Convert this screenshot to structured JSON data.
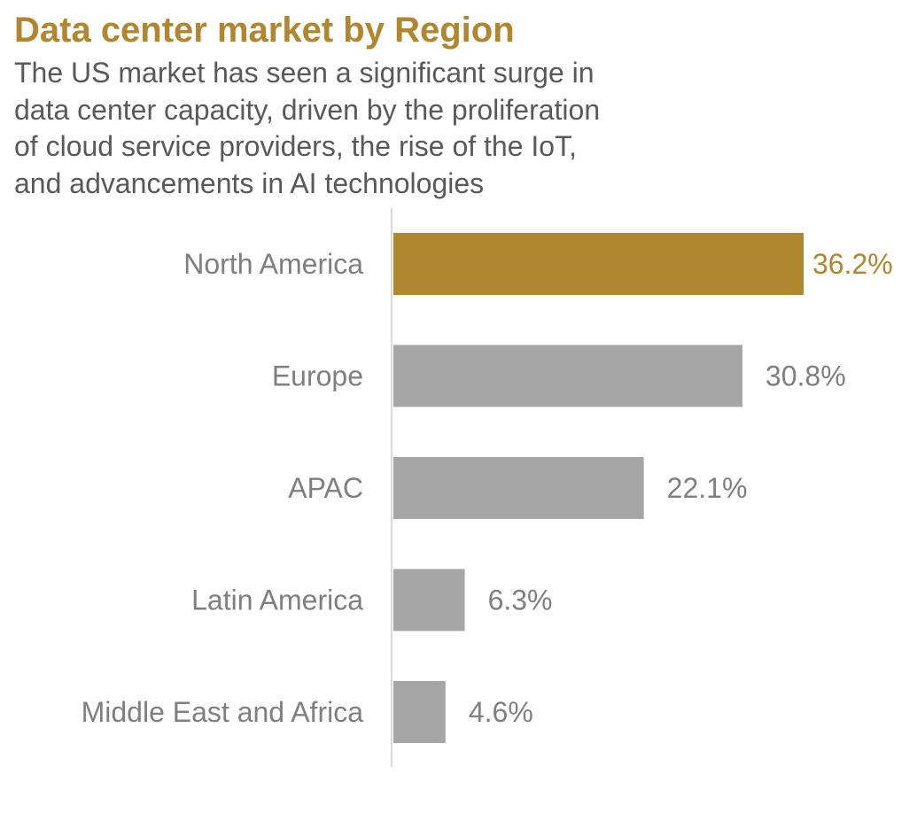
{
  "title": "Data center market by Region",
  "subtitle_lines": [
    "The US market has seen a significant surge in",
    "data center capacity, driven by the proliferation",
    "of cloud service providers, the rise of the IoT,",
    "and advancements in AI technologies"
  ],
  "colors": {
    "highlight": "#B0862F",
    "bar": "#A6A6A6",
    "label": "#7F7F7F",
    "axis": "#D9D9D9"
  },
  "chart_data": {
    "type": "bar",
    "orientation": "horizontal",
    "title": "Data center market by Region",
    "subtitle": "The US market has seen a significant surge in data center capacity, driven by the proliferation of cloud service providers, the rise of the IoT, and advancements in AI technologies",
    "categories": [
      "North America",
      "Europe",
      "APAC",
      "Latin America",
      "Middle East and Africa"
    ],
    "values": [
      36.2,
      30.8,
      22.1,
      6.3,
      4.6
    ],
    "value_labels": [
      "36.2%",
      "30.8%",
      "22.1%",
      "6.3%",
      "4.6%"
    ],
    "highlighted_category": "North America",
    "unit": "%",
    "xlabel": "",
    "ylabel": "",
    "xlim": [
      0,
      40
    ],
    "grid": false,
    "legend": "none"
  }
}
